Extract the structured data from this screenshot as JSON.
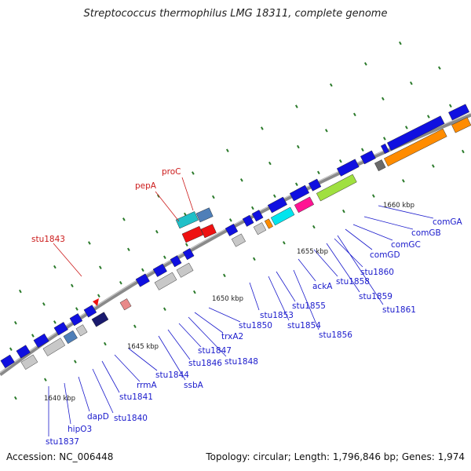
{
  "title": "Streptococcus thermophilus LMG 18311, complete genome",
  "footer": {
    "accession": "Accession: NC_006448",
    "topology": "Topology: circular; Length: 1,796,846 bp; Genes: 1,974"
  },
  "colors": {
    "backbone": "#8a8a8a",
    "gene_forward": "#1010e0",
    "gene_other": "#c8c8c8",
    "label_blue": "#1a1acc",
    "label_red": "#cc1a1a",
    "gc_dots": "#2a7a2a"
  },
  "kbp_ticks": [
    "1640 kbp",
    "1645 kbp",
    "1650 kbp",
    "1655 kbp",
    "1660 kbp"
  ],
  "gene_labels_blue": [
    "stu1837",
    "hipO3",
    "dapD",
    "stu1840",
    "stu1841",
    "rrmA",
    "stu1844",
    "ssbA",
    "stu1846",
    "stu1847",
    "stu1848",
    "trxA2",
    "stu1850",
    "stu1853",
    "stu1854",
    "stu1855",
    "stu1856",
    "ackA",
    "stu1858",
    "stu1859",
    "stu1860",
    "stu1861",
    "comGD",
    "comGC",
    "comGB",
    "comGA"
  ],
  "gene_labels_red": [
    "stu1843",
    "pepA",
    "proC"
  ]
}
